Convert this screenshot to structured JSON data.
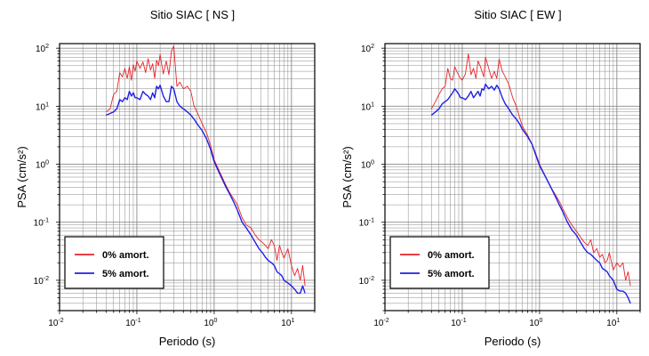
{
  "chart_data": [
    {
      "type": "line",
      "title": "Sitio SIAC [ NS ]",
      "xlabel": "Periodo (s)",
      "ylabel": "PSA (cm/s²)",
      "xscale": "log",
      "yscale": "log",
      "xlim": [
        0.01,
        20
      ],
      "ylim": [
        0.003,
        120
      ],
      "grid": true,
      "legend_placement": "bottom-left",
      "series": [
        {
          "name": "0% amort.",
          "color": "#e8232a",
          "x": [
            0.04,
            0.045,
            0.05,
            0.055,
            0.06,
            0.065,
            0.07,
            0.075,
            0.08,
            0.085,
            0.09,
            0.095,
            0.1,
            0.11,
            0.12,
            0.13,
            0.14,
            0.15,
            0.16,
            0.17,
            0.18,
            0.19,
            0.2,
            0.22,
            0.24,
            0.26,
            0.28,
            0.3,
            0.33,
            0.36,
            0.4,
            0.45,
            0.5,
            0.55,
            0.6,
            0.7,
            0.8,
            0.9,
            1.0,
            1.2,
            1.4,
            1.6,
            1.8,
            2.0,
            2.3,
            2.6,
            3.0,
            3.4,
            3.8,
            4.2,
            4.6,
            5.0,
            5.5,
            6.0,
            6.5,
            7.0,
            7.5,
            8.0,
            9.0,
            10.0,
            11.0,
            12.0,
            13.0,
            14.0,
            15.0
          ],
          "y": [
            8,
            9,
            16,
            18,
            38,
            32,
            45,
            30,
            48,
            28,
            52,
            40,
            60,
            45,
            58,
            38,
            66,
            42,
            54,
            30,
            62,
            50,
            78,
            36,
            60,
            35,
            88,
            110,
            22,
            26,
            20,
            22,
            18,
            10,
            8,
            5,
            3.4,
            2.1,
            1.2,
            0.7,
            0.45,
            0.32,
            0.25,
            0.2,
            0.12,
            0.09,
            0.08,
            0.06,
            0.05,
            0.045,
            0.04,
            0.035,
            0.05,
            0.04,
            0.022,
            0.04,
            0.03,
            0.024,
            0.035,
            0.018,
            0.012,
            0.016,
            0.01,
            0.018,
            0.008
          ]
        },
        {
          "name": "5% amort.",
          "color": "#1f1fe6",
          "x": [
            0.04,
            0.045,
            0.05,
            0.055,
            0.06,
            0.065,
            0.07,
            0.075,
            0.08,
            0.085,
            0.09,
            0.095,
            0.1,
            0.11,
            0.12,
            0.13,
            0.14,
            0.15,
            0.16,
            0.17,
            0.18,
            0.19,
            0.2,
            0.22,
            0.24,
            0.26,
            0.28,
            0.3,
            0.33,
            0.36,
            0.4,
            0.45,
            0.5,
            0.55,
            0.6,
            0.7,
            0.8,
            0.9,
            1.0,
            1.2,
            1.4,
            1.6,
            1.8,
            2.0,
            2.3,
            2.6,
            3.0,
            3.4,
            3.8,
            4.2,
            4.6,
            5.0,
            5.5,
            6.0,
            6.5,
            7.0,
            7.5,
            8.0,
            9.0,
            10.0,
            11.0,
            12.0,
            13.0,
            14.0,
            15.0
          ],
          "y": [
            7,
            7.5,
            8,
            9,
            13,
            12,
            14,
            13,
            18,
            15,
            17,
            14,
            14,
            13,
            18,
            16,
            15,
            13,
            17,
            14,
            22,
            20,
            23,
            15,
            12,
            12,
            22,
            20,
            12,
            10,
            9,
            8,
            7,
            6,
            5,
            3.8,
            2.7,
            1.8,
            1.1,
            0.65,
            0.42,
            0.3,
            0.22,
            0.16,
            0.1,
            0.08,
            0.06,
            0.045,
            0.035,
            0.03,
            0.025,
            0.022,
            0.02,
            0.018,
            0.014,
            0.013,
            0.012,
            0.01,
            0.009,
            0.008,
            0.007,
            0.006,
            0.006,
            0.008,
            0.006
          ]
        }
      ]
    },
    {
      "type": "line",
      "title": "Sitio SIAC [ EW ]",
      "xlabel": "Periodo (s)",
      "ylabel": "PSA (cm/s²)",
      "xscale": "log",
      "yscale": "log",
      "xlim": [
        0.01,
        20
      ],
      "ylim": [
        0.003,
        120
      ],
      "grid": true,
      "legend_placement": "bottom-left",
      "series": [
        {
          "name": "0% amort.",
          "color": "#e8232a",
          "x": [
            0.04,
            0.045,
            0.05,
            0.055,
            0.06,
            0.065,
            0.07,
            0.075,
            0.08,
            0.085,
            0.09,
            0.095,
            0.1,
            0.11,
            0.12,
            0.13,
            0.14,
            0.15,
            0.16,
            0.17,
            0.18,
            0.19,
            0.2,
            0.22,
            0.24,
            0.26,
            0.28,
            0.3,
            0.33,
            0.36,
            0.4,
            0.45,
            0.5,
            0.55,
            0.6,
            0.7,
            0.8,
            0.9,
            1.0,
            1.2,
            1.4,
            1.6,
            1.8,
            2.0,
            2.3,
            2.6,
            3.0,
            3.4,
            3.8,
            4.2,
            4.6,
            5.0,
            5.5,
            6.0,
            6.5,
            7.0,
            7.5,
            8.0,
            9.0,
            10.0,
            11.0,
            12.0,
            13.0,
            14.0,
            15.0
          ],
          "y": [
            9,
            12,
            16,
            20,
            22,
            45,
            30,
            28,
            48,
            40,
            34,
            30,
            28,
            36,
            80,
            35,
            45,
            30,
            60,
            50,
            40,
            32,
            70,
            45,
            30,
            40,
            30,
            65,
            40,
            32,
            24,
            14,
            10,
            6.5,
            4.5,
            3.2,
            2.2,
            1.5,
            1.0,
            0.6,
            0.4,
            0.3,
            0.23,
            0.17,
            0.12,
            0.09,
            0.07,
            0.055,
            0.045,
            0.04,
            0.05,
            0.03,
            0.035,
            0.025,
            0.028,
            0.02,
            0.022,
            0.03,
            0.015,
            0.02,
            0.017,
            0.02,
            0.01,
            0.014,
            0.008
          ]
        },
        {
          "name": "5% amort.",
          "color": "#1f1fe6",
          "x": [
            0.04,
            0.045,
            0.05,
            0.055,
            0.06,
            0.065,
            0.07,
            0.075,
            0.08,
            0.085,
            0.09,
            0.095,
            0.1,
            0.11,
            0.12,
            0.13,
            0.14,
            0.15,
            0.16,
            0.17,
            0.18,
            0.19,
            0.2,
            0.22,
            0.24,
            0.26,
            0.28,
            0.3,
            0.33,
            0.36,
            0.4,
            0.45,
            0.5,
            0.55,
            0.6,
            0.7,
            0.8,
            0.9,
            1.0,
            1.2,
            1.4,
            1.6,
            1.8,
            2.0,
            2.3,
            2.6,
            3.0,
            3.4,
            3.8,
            4.2,
            4.6,
            5.0,
            5.5,
            6.0,
            6.5,
            7.0,
            7.5,
            8.0,
            9.0,
            10.0,
            11.0,
            12.0,
            13.0,
            14.0,
            15.0
          ],
          "y": [
            7,
            8,
            9,
            11,
            12,
            13,
            15,
            17,
            20,
            18,
            16,
            14,
            14,
            13,
            15,
            18,
            14,
            16,
            18,
            15,
            20,
            19,
            24,
            20,
            22,
            19,
            23,
            20,
            14,
            11,
            9,
            7,
            6,
            5,
            4,
            3,
            2.2,
            1.4,
            0.95,
            0.6,
            0.4,
            0.28,
            0.2,
            0.15,
            0.1,
            0.075,
            0.06,
            0.045,
            0.035,
            0.03,
            0.028,
            0.025,
            0.022,
            0.02,
            0.016,
            0.015,
            0.014,
            0.012,
            0.01,
            0.007,
            0.0065,
            0.0065,
            0.006,
            0.005,
            0.004
          ]
        }
      ]
    }
  ]
}
